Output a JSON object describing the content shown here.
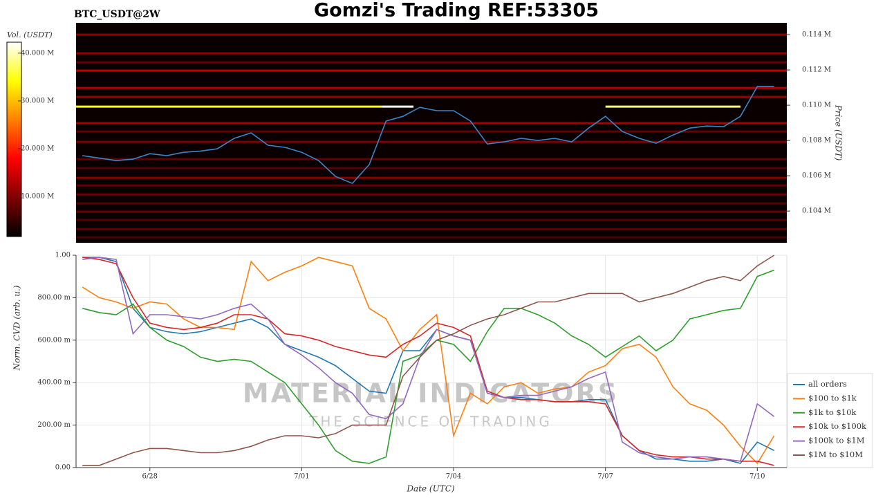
{
  "chart_data": [
    {
      "type": "heatmap",
      "title": "Gomzi's Trading REF:53305",
      "subtitle": "BTC_USDT@2W",
      "y_label": "Price (USDT)",
      "colorbar_label": "Vol. (USDT)",
      "line_color": "#3a86c8",
      "x": [
        "6/26 16:00",
        "6/27 00:00",
        "6/27 08:00",
        "6/27 16:00",
        "6/28 00:00",
        "6/28 08:00",
        "6/28 16:00",
        "6/29 00:00",
        "6/29 08:00",
        "6/29 16:00",
        "6/30 00:00",
        "6/30 08:00",
        "6/30 16:00",
        "7/01 00:00",
        "7/01 08:00",
        "7/01 16:00",
        "7/02 00:00",
        "7/02 08:00",
        "7/02 16:00",
        "7/03 00:00",
        "7/03 08:00",
        "7/03 16:00",
        "7/04 00:00",
        "7/04 08:00",
        "7/04 16:00",
        "7/05 00:00",
        "7/05 08:00",
        "7/05 16:00",
        "7/06 00:00",
        "7/06 08:00",
        "7/06 16:00",
        "7/07 00:00",
        "7/07 08:00",
        "7/07 16:00",
        "7/08 00:00",
        "7/08 08:00",
        "7/08 16:00",
        "7/09 00:00",
        "7/09 08:00",
        "7/09 16:00",
        "7/10 00:00",
        "7/10 08:00"
      ],
      "values": [
        0.10714,
        0.107,
        0.10686,
        0.10694,
        0.10725,
        0.10714,
        0.10733,
        0.1074,
        0.10753,
        0.10812,
        0.10843,
        0.10773,
        0.10761,
        0.10733,
        0.10686,
        0.10596,
        0.10557,
        0.10663,
        0.1091,
        0.10937,
        0.10988,
        0.10969,
        0.10969,
        0.1091,
        0.1078,
        0.10792,
        0.10812,
        0.108,
        0.10812,
        0.10792,
        0.1087,
        0.10937,
        0.10851,
        0.10812,
        0.10784,
        0.10831,
        0.1087,
        0.10882,
        0.10878,
        0.10937,
        0.11106,
        0.11106
      ],
      "xlim": [
        "6/26 13:00",
        "7/10 14:00"
      ],
      "ylim": [
        0.1022,
        0.11467
      ],
      "yticks": [
        {
          "value": 0.104,
          "label": "0.104 M"
        },
        {
          "value": 0.106,
          "label": "0.106 M"
        },
        {
          "value": 0.108,
          "label": "0.108 M"
        },
        {
          "value": 0.11,
          "label": "0.110 M"
        },
        {
          "value": 0.112,
          "label": "0.112 M"
        },
        {
          "value": 0.114,
          "label": "0.114 M"
        }
      ],
      "clim": [
        1.6,
        42.3
      ],
      "cticks": [
        {
          "value": 10,
          "label": "10.000 M"
        },
        {
          "value": 20,
          "label": "20.000 M"
        },
        {
          "value": 30,
          "label": "30.000 M"
        },
        {
          "value": 40,
          "label": "40.000 M"
        }
      ],
      "levels": [
        0.114,
        0.11294,
        0.11243,
        0.11196,
        0.11098,
        0.11047,
        0.10898,
        0.10851,
        0.10792,
        0.10694,
        0.10643,
        0.10588,
        0.10545,
        0.10494,
        0.10443,
        0.10396,
        0.10349,
        0.10298,
        0.10251
      ],
      "level_volumes": [
        12,
        13,
        9,
        16,
        15,
        13,
        14,
        9,
        11,
        9,
        8,
        12,
        9,
        10,
        8,
        10,
        8,
        9,
        7
      ],
      "bright_segments": [
        {
          "start": "6/26 13:00",
          "end": "7/02 14:00",
          "price": 0.10992,
          "volume": 35
        },
        {
          "start": "7/02 14:00",
          "end": "7/03 05:00",
          "price": 0.10992,
          "volume": 42
        },
        {
          "start": "7/07 00:00",
          "end": "7/09 16:00",
          "price": 0.10992,
          "volume": 38
        }
      ]
    },
    {
      "type": "line",
      "x_label": "Date (UTC)",
      "y_label": "Norm. CVD (arb. u.)",
      "annotations": [
        "MATERIAL INDICATORS",
        "THE SCIENCE OF TRADING"
      ],
      "legend": "right",
      "grid": true,
      "x": [
        "6/26 16:00",
        "6/27 00:00",
        "6/27 08:00",
        "6/27 16:00",
        "6/28 00:00",
        "6/28 08:00",
        "6/28 16:00",
        "6/29 00:00",
        "6/29 08:00",
        "6/29 16:00",
        "6/30 00:00",
        "6/30 08:00",
        "6/30 16:00",
        "7/01 00:00",
        "7/01 08:00",
        "7/01 16:00",
        "7/02 00:00",
        "7/02 08:00",
        "7/02 16:00",
        "7/03 00:00",
        "7/03 08:00",
        "7/03 16:00",
        "7/04 00:00",
        "7/04 08:00",
        "7/04 16:00",
        "7/05 00:00",
        "7/05 08:00",
        "7/05 16:00",
        "7/06 00:00",
        "7/06 08:00",
        "7/06 16:00",
        "7/07 00:00",
        "7/07 08:00",
        "7/07 16:00",
        "7/08 00:00",
        "7/08 08:00",
        "7/08 16:00",
        "7/09 00:00",
        "7/09 08:00",
        "7/09 16:00",
        "7/10 00:00",
        "7/10 08:00"
      ],
      "xlim": [
        "6/26 13:00",
        "7/10 14:00"
      ],
      "xticks": [
        "6/28",
        "7/01",
        "7/04",
        "7/07",
        "7/10"
      ],
      "ylim": [
        0,
        1
      ],
      "yticks": [
        {
          "value": 0,
          "label": "0.00"
        },
        {
          "value": 0.2,
          "label": "200.00 m"
        },
        {
          "value": 0.4,
          "label": "400.00 m"
        },
        {
          "value": 0.6,
          "label": "600.00 m"
        },
        {
          "value": 0.8,
          "label": "800.00 m"
        },
        {
          "value": 1,
          "label": "1.00"
        }
      ],
      "series": [
        {
          "name": "all orders",
          "color": "#1f77b4",
          "values": [
            0.99,
            0.99,
            0.97,
            0.75,
            0.66,
            0.64,
            0.63,
            0.64,
            0.66,
            0.68,
            0.7,
            0.66,
            0.58,
            0.55,
            0.52,
            0.48,
            0.42,
            0.36,
            0.35,
            0.55,
            0.55,
            0.65,
            0.62,
            0.6,
            0.35,
            0.33,
            0.33,
            0.32,
            0.31,
            0.31,
            0.32,
            0.32,
            0.15,
            0.08,
            0.04,
            0.04,
            0.03,
            0.03,
            0.04,
            0.02,
            0.12,
            0.08
          ]
        },
        {
          "name": "$100 to $1k",
          "color": "#ff7f0e",
          "values": [
            0.85,
            0.8,
            0.78,
            0.75,
            0.78,
            0.77,
            0.7,
            0.66,
            0.66,
            0.65,
            0.97,
            0.88,
            0.92,
            0.95,
            0.99,
            0.97,
            0.95,
            0.75,
            0.7,
            0.55,
            0.65,
            0.72,
            0.15,
            0.35,
            0.3,
            0.38,
            0.4,
            0.35,
            0.37,
            0.38,
            0.45,
            0.48,
            0.56,
            0.58,
            0.52,
            0.38,
            0.3,
            0.27,
            0.2,
            0.1,
            0.02,
            0.15
          ]
        },
        {
          "name": "$1k to $10k",
          "color": "#2ca02c",
          "values": [
            0.75,
            0.73,
            0.72,
            0.77,
            0.66,
            0.6,
            0.57,
            0.52,
            0.5,
            0.51,
            0.5,
            0.45,
            0.4,
            0.3,
            0.2,
            0.08,
            0.03,
            0.02,
            0.05,
            0.5,
            0.53,
            0.6,
            0.58,
            0.5,
            0.64,
            0.75,
            0.75,
            0.72,
            0.68,
            0.62,
            0.58,
            0.52,
            0.57,
            0.62,
            0.55,
            0.6,
            0.7,
            0.72,
            0.74,
            0.75,
            0.9,
            0.93
          ]
        },
        {
          "name": "$10k to $100k",
          "color": "#d62728",
          "values": [
            0.99,
            0.98,
            0.96,
            0.8,
            0.68,
            0.66,
            0.65,
            0.66,
            0.68,
            0.72,
            0.72,
            0.7,
            0.63,
            0.62,
            0.6,
            0.57,
            0.55,
            0.53,
            0.52,
            0.58,
            0.62,
            0.68,
            0.66,
            0.62,
            0.36,
            0.33,
            0.32,
            0.32,
            0.31,
            0.31,
            0.31,
            0.3,
            0.15,
            0.08,
            0.06,
            0.05,
            0.05,
            0.04,
            0.04,
            0.03,
            0.03,
            0.01
          ]
        },
        {
          "name": "$100k to $1M",
          "color": "#9467bd",
          "values": [
            0.98,
            0.99,
            0.98,
            0.63,
            0.72,
            0.72,
            0.71,
            0.7,
            0.72,
            0.75,
            0.77,
            0.7,
            0.58,
            0.53,
            0.47,
            0.4,
            0.35,
            0.25,
            0.23,
            0.3,
            0.52,
            0.65,
            0.62,
            0.6,
            0.35,
            0.33,
            0.34,
            0.34,
            0.36,
            0.38,
            0.42,
            0.45,
            0.12,
            0.07,
            0.05,
            0.04,
            0.05,
            0.05,
            0.04,
            0.03,
            0.3,
            0.24
          ]
        },
        {
          "name": "$1M to $10M",
          "color": "#8c564b",
          "values": [
            0.01,
            0.01,
            0.04,
            0.07,
            0.09,
            0.09,
            0.08,
            0.07,
            0.07,
            0.08,
            0.1,
            0.13,
            0.15,
            0.15,
            0.14,
            0.16,
            0.2,
            0.2,
            0.2,
            0.43,
            0.52,
            0.6,
            0.63,
            0.67,
            0.7,
            0.72,
            0.75,
            0.78,
            0.78,
            0.8,
            0.82,
            0.82,
            0.82,
            0.78,
            0.8,
            0.82,
            0.85,
            0.88,
            0.9,
            0.88,
            0.95,
            1.0
          ]
        }
      ]
    }
  ]
}
